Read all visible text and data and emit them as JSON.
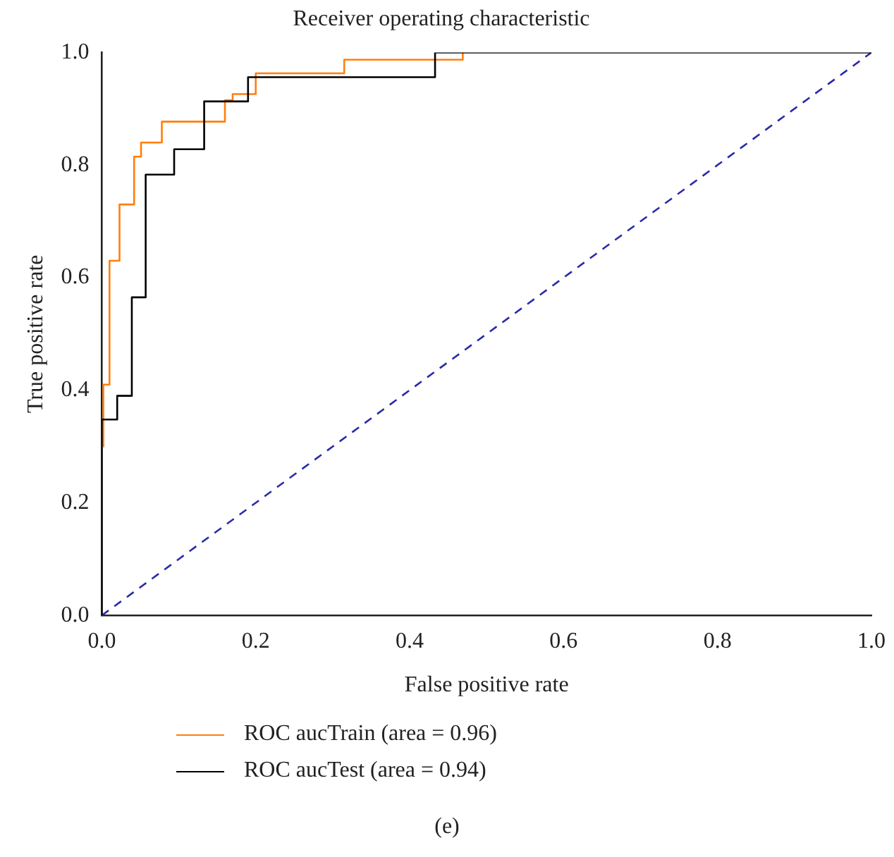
{
  "chart_data": {
    "type": "line",
    "title": "Receiver operating characteristic",
    "xlabel": "False positive rate",
    "ylabel": "True positive rate",
    "xlim": [
      0,
      1
    ],
    "ylim": [
      0,
      1
    ],
    "xticks": [
      {
        "value": 0,
        "label": "0.0"
      },
      {
        "value": 0.2,
        "label": "0.2"
      },
      {
        "value": 0.4,
        "label": "0.4"
      },
      {
        "value": 0.6,
        "label": "0.6"
      },
      {
        "value": 0.8,
        "label": "0.8"
      },
      {
        "value": 1,
        "label": "1.0"
      }
    ],
    "yticks": [
      {
        "value": 0,
        "label": "0.0"
      },
      {
        "value": 0.2,
        "label": "0.2"
      },
      {
        "value": 0.4,
        "label": "0.4"
      },
      {
        "value": 0.6,
        "label": "0.6"
      },
      {
        "value": 0.8,
        "label": "0.8"
      },
      {
        "value": 1,
        "label": "1.0"
      }
    ],
    "grid": false,
    "legend": "bottom",
    "marker": "none",
    "series": [
      {
        "name": "ROC aucTrain (area = 0.96)",
        "color": "#ff7f0e",
        "x": [
          0,
          0.002,
          0.002,
          0.01,
          0.01,
          0.023,
          0.023,
          0.042,
          0.042,
          0.051,
          0.051,
          0.078,
          0.078,
          0.16,
          0.16,
          0.17,
          0.17,
          0.2,
          0.2,
          0.315,
          0.315,
          0.469,
          0.469
        ],
        "values": [
          0.3,
          0.3,
          0.41,
          0.41,
          0.63,
          0.63,
          0.73,
          0.73,
          0.815,
          0.815,
          0.84,
          0.84,
          0.877,
          0.877,
          0.915,
          0.915,
          0.926,
          0.926,
          0.963,
          0.963,
          0.987,
          0.987,
          1
        ]
      },
      {
        "name": "ROC aucTest (area = 0.94)",
        "color": "#000000",
        "x": [
          0,
          0,
          0.02,
          0.02,
          0.039,
          0.039,
          0.057,
          0.057,
          0.094,
          0.094,
          0.133,
          0.133,
          0.19,
          0.19,
          0.433,
          0.433,
          1
        ],
        "values": [
          0,
          0.348,
          0.348,
          0.39,
          0.39,
          0.565,
          0.565,
          0.783,
          0.783,
          0.828,
          0.828,
          0.913,
          0.913,
          0.956,
          0.956,
          1,
          1
        ]
      },
      {
        "color": "#2a2aa8",
        "line_style": "dashed",
        "x": [
          0,
          1
        ],
        "values": [
          0,
          1
        ]
      }
    ],
    "annotations": [
      "(e)"
    ]
  }
}
